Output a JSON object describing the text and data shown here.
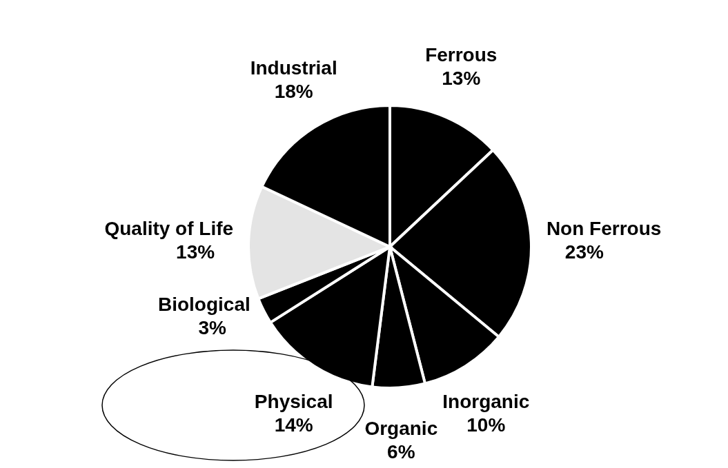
{
  "chart_data": {
    "type": "pie",
    "categories": [
      "Ferrous",
      "Non Ferrous",
      "Inorganic",
      "Organic",
      "Physical",
      "Biological",
      "Quality of Life",
      "Industrial"
    ],
    "values": [
      13,
      23,
      10,
      6,
      14,
      3,
      13,
      18
    ],
    "value_labels": [
      "13%",
      "23%",
      "10%",
      "6%",
      "14%",
      "3%",
      "13%",
      "18%"
    ],
    "colors": [
      "#000000",
      "#000000",
      "#000000",
      "#000000",
      "#000000",
      "#000000",
      "#e4e4e4",
      "#000000"
    ]
  }
}
